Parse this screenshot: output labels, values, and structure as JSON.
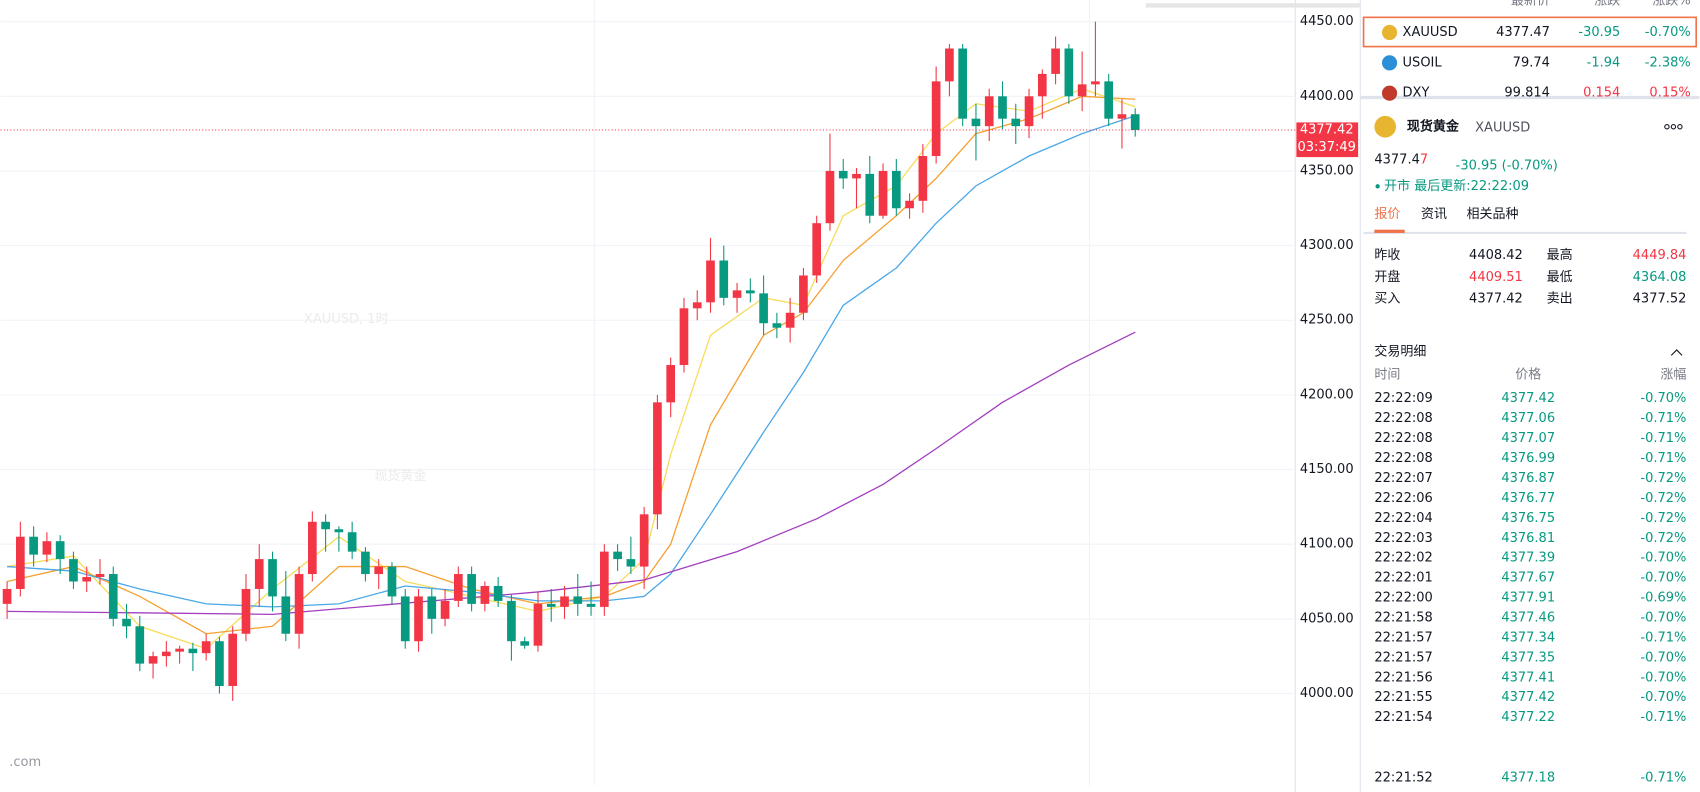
{
  "chart": {
    "watermark_symbol": "XAUUSD, 1时",
    "watermark_name": "现货黄金",
    "logo": ".com",
    "ylim": [
      3934,
      4464.5
    ],
    "yticks": [
      {
        "value": 4450,
        "label": "4450.00"
      },
      {
        "value": 4400,
        "label": "4400.00"
      },
      {
        "value": 4350,
        "label": "4350.00"
      },
      {
        "value": 4300,
        "label": "4300.00"
      },
      {
        "value": 4250,
        "label": "4250.00"
      },
      {
        "value": 4200,
        "label": "4200.00"
      },
      {
        "value": 4150,
        "label": "4150.00"
      },
      {
        "value": 4100,
        "label": "4100.00"
      },
      {
        "value": 4050,
        "label": "4050.00"
      },
      {
        "value": 4000,
        "label": "4000.00"
      }
    ],
    "up_color": "#f23645",
    "down_color": "#089981",
    "last": {
      "value": 4377.42,
      "label": "4377.42"
    },
    "countdown": "03:37:49",
    "candles": [
      [
        4060,
        4075,
        4050,
        4070
      ],
      [
        4070,
        4115,
        4065,
        4105
      ],
      [
        4105,
        4112,
        4085,
        4093
      ],
      [
        4093,
        4108,
        4088,
        4102
      ],
      [
        4102,
        4106,
        4080,
        4090
      ],
      [
        4090,
        4095,
        4070,
        4075
      ],
      [
        4075,
        4085,
        4068,
        4078
      ],
      [
        4078,
        4090,
        4073,
        4080
      ],
      [
        4080,
        4085,
        4045,
        4050
      ],
      [
        4050,
        4060,
        4037,
        4045
      ],
      [
        4045,
        4052,
        4015,
        4020
      ],
      [
        4020,
        4028,
        4010,
        4025
      ],
      [
        4025,
        4035,
        4018,
        4028
      ],
      [
        4028,
        4032,
        4020,
        4030
      ],
      [
        4030,
        4034,
        4015,
        4027
      ],
      [
        4027,
        4040,
        4022,
        4035
      ],
      [
        4035,
        4038,
        4000,
        4005
      ],
      [
        4005,
        4045,
        3995,
        4040
      ],
      [
        4040,
        4080,
        4035,
        4070
      ],
      [
        4070,
        4100,
        4058,
        4090
      ],
      [
        4090,
        4095,
        4055,
        4065
      ],
      [
        4065,
        4082,
        4035,
        4040
      ],
      [
        4040,
        4085,
        4030,
        4080
      ],
      [
        4080,
        4122,
        4075,
        4115
      ],
      [
        4115,
        4120,
        4095,
        4110
      ],
      [
        4110,
        4112,
        4095,
        4108
      ],
      [
        4108,
        4115,
        4090,
        4095
      ],
      [
        4095,
        4098,
        4075,
        4080
      ],
      [
        4080,
        4090,
        4070,
        4085
      ],
      [
        4085,
        4088,
        4060,
        4065
      ],
      [
        4065,
        4070,
        4030,
        4035
      ],
      [
        4035,
        4070,
        4028,
        4065
      ],
      [
        4065,
        4070,
        4040,
        4050
      ],
      [
        4050,
        4070,
        4045,
        4062
      ],
      [
        4062,
        4085,
        4058,
        4080
      ],
      [
        4080,
        4085,
        4055,
        4060
      ],
      [
        4060,
        4075,
        4055,
        4072
      ],
      [
        4072,
        4078,
        4058,
        4062
      ],
      [
        4062,
        4066,
        4022,
        4035
      ],
      [
        4035,
        4038,
        4030,
        4032
      ],
      [
        4032,
        4068,
        4028,
        4060
      ],
      [
        4060,
        4070,
        4048,
        4058
      ],
      [
        4058,
        4072,
        4050,
        4065
      ],
      [
        4065,
        4080,
        4052,
        4060
      ],
      [
        4060,
        4075,
        4052,
        4058
      ],
      [
        4058,
        4100,
        4052,
        4095
      ],
      [
        4095,
        4100,
        4082,
        4090
      ],
      [
        4090,
        4105,
        4080,
        4085
      ],
      [
        4085,
        4125,
        4070,
        4120
      ],
      [
        4120,
        4200,
        4110,
        4195
      ],
      [
        4195,
        4225,
        4185,
        4220
      ],
      [
        4220,
        4265,
        4215,
        4258
      ],
      [
        4258,
        4270,
        4250,
        4262
      ],
      [
        4262,
        4305,
        4255,
        4290
      ],
      [
        4290,
        4300,
        4260,
        4265
      ],
      [
        4265,
        4275,
        4255,
        4270
      ],
      [
        4270,
        4278,
        4262,
        4268
      ],
      [
        4268,
        4280,
        4240,
        4248
      ],
      [
        4248,
        4255,
        4238,
        4245
      ],
      [
        4245,
        4265,
        4235,
        4255
      ],
      [
        4255,
        4285,
        4250,
        4280
      ],
      [
        4280,
        4320,
        4275,
        4315
      ],
      [
        4315,
        4375,
        4310,
        4350
      ],
      [
        4350,
        4358,
        4338,
        4345
      ],
      [
        4345,
        4352,
        4325,
        4348
      ],
      [
        4348,
        4360,
        4315,
        4320
      ],
      [
        4320,
        4355,
        4318,
        4350
      ],
      [
        4350,
        4358,
        4320,
        4325
      ],
      [
        4325,
        4335,
        4318,
        4330
      ],
      [
        4330,
        4368,
        4322,
        4360
      ],
      [
        4360,
        4420,
        4355,
        4410
      ],
      [
        4410,
        4435,
        4400,
        4432
      ],
      [
        4432,
        4435,
        4380,
        4385
      ],
      [
        4385,
        4395,
        4357,
        4380
      ],
      [
        4380,
        4405,
        4370,
        4400
      ],
      [
        4400,
        4410,
        4378,
        4385
      ],
      [
        4385,
        4395,
        4368,
        4380
      ],
      [
        4380,
        4405,
        4372,
        4400
      ],
      [
        4400,
        4418,
        4385,
        4415
      ],
      [
        4415,
        4440,
        4408,
        4432
      ],
      [
        4432,
        4435,
        4395,
        4400
      ],
      [
        4400,
        4430,
        4390,
        4408
      ],
      [
        4408,
        4450,
        4400,
        4410
      ],
      [
        4410,
        4415,
        4380,
        4385
      ],
      [
        4385,
        4398,
        4365,
        4388
      ],
      [
        4388,
        4392,
        4373,
        4377.42
      ]
    ],
    "averages": [
      {
        "color": "#f7dc5a",
        "x": [
          0,
          5,
          10,
          15,
          20,
          25,
          30,
          35,
          40,
          45,
          48,
          50,
          53,
          57,
          60,
          63,
          67,
          70,
          73,
          77,
          81,
          85
        ],
        "values": [
          4085,
          4092,
          4045,
          4030,
          4070,
          4105,
          4075,
          4065,
          4055,
          4065,
          4090,
          4160,
          4240,
          4265,
          4260,
          4320,
          4340,
          4375,
          4395,
          4390,
          4405,
          4393
        ]
      },
      {
        "color": "#f5a030",
        "x": [
          0,
          5,
          10,
          15,
          20,
          25,
          30,
          35,
          40,
          45,
          48,
          50,
          53,
          57,
          60,
          63,
          67,
          70,
          73,
          77,
          81,
          85
        ],
        "values": [
          4075,
          4085,
          4065,
          4040,
          4045,
          4085,
          4085,
          4070,
          4060,
          4065,
          4075,
          4100,
          4180,
          4240,
          4255,
          4290,
          4320,
          4345,
          4375,
          4385,
          4400,
          4398
        ]
      },
      {
        "color": "#4aa8e8",
        "x": [
          0,
          5,
          10,
          15,
          20,
          25,
          30,
          35,
          40,
          45,
          48,
          50,
          53,
          57,
          60,
          63,
          67,
          70,
          73,
          77,
          81,
          85
        ],
        "values": [
          4085,
          4082,
          4070,
          4060,
          4058,
          4060,
          4072,
          4068,
          4062,
          4062,
          4065,
          4080,
          4120,
          4175,
          4215,
          4260,
          4285,
          4315,
          4340,
          4360,
          4375,
          4387
        ]
      },
      {
        "color": "#a23dbf",
        "x": [
          0,
          20,
          40,
          48,
          55,
          61,
          66,
          70,
          75,
          80,
          85
        ],
        "values": [
          4055,
          4053,
          4068,
          4076,
          4095,
          4117,
          4140,
          4164,
          4195,
          4220,
          4242
        ]
      }
    ]
  },
  "watchlist": {
    "header": [
      "最新价",
      "涨跌",
      "涨跌%"
    ],
    "rows": [
      {
        "symbol": "XAUUSD",
        "price": "4377.47",
        "change": "-30.95",
        "pct": "-0.70%",
        "icon": "#e8b530",
        "color": "#089981"
      },
      {
        "symbol": "USOIL",
        "price": "79.74",
        "change": "-1.94",
        "pct": "-2.38%",
        "icon": "#2a8fd6",
        "color": "#089981"
      },
      {
        "symbol": "DXY",
        "price": "99.814",
        "change": "0.154",
        "pct": "0.15%",
        "icon": "#c0392b",
        "color": "#f23645"
      }
    ]
  },
  "detail": {
    "name": "现货黄金",
    "symbol": "XAUUSD",
    "price_head": "4377.4",
    "price_tail": "7",
    "change": "-30.95 (-0.70%)",
    "status": "开市 最后更新:22:22:09",
    "tabs": [
      "报价",
      "资讯",
      "相关品种"
    ],
    "stats": [
      {
        "label": "昨收",
        "value": "4408.42",
        "color": "#131722"
      },
      {
        "label": "最高",
        "value": "4449.84",
        "color": "#f23645"
      },
      {
        "label": "开盘",
        "value": "4409.51",
        "color": "#f23645"
      },
      {
        "label": "最低",
        "value": "4364.08",
        "color": "#089981"
      },
      {
        "label": "买入",
        "value": "4377.42",
        "color": "#131722"
      },
      {
        "label": "卖出",
        "value": "4377.52",
        "color": "#131722"
      }
    ]
  },
  "trades": {
    "title": "交易明细",
    "header": [
      "时间",
      "价格",
      "涨幅"
    ],
    "rows": [
      [
        "22:22:09",
        "4377.42",
        "-0.70%"
      ],
      [
        "22:22:08",
        "4377.06",
        "-0.71%"
      ],
      [
        "22:22:08",
        "4377.07",
        "-0.71%"
      ],
      [
        "22:22:08",
        "4376.99",
        "-0.71%"
      ],
      [
        "22:22:07",
        "4376.87",
        "-0.72%"
      ],
      [
        "22:22:06",
        "4376.77",
        "-0.72%"
      ],
      [
        "22:22:04",
        "4376.75",
        "-0.72%"
      ],
      [
        "22:22:03",
        "4376.81",
        "-0.72%"
      ],
      [
        "22:22:02",
        "4377.39",
        "-0.70%"
      ],
      [
        "22:22:01",
        "4377.67",
        "-0.70%"
      ],
      [
        "22:22:00",
        "4377.91",
        "-0.69%"
      ],
      [
        "22:21:58",
        "4377.46",
        "-0.70%"
      ],
      [
        "22:21:57",
        "4377.34",
        "-0.71%"
      ],
      [
        "22:21:57",
        "4377.35",
        "-0.70%"
      ],
      [
        "22:21:56",
        "4377.41",
        "-0.70%"
      ],
      [
        "22:21:55",
        "4377.42",
        "-0.70%"
      ],
      [
        "22:21:54",
        "4377.22",
        "-0.71%"
      ],
      [
        "22:21:52",
        "4377.18",
        "-0.71%"
      ]
    ]
  }
}
